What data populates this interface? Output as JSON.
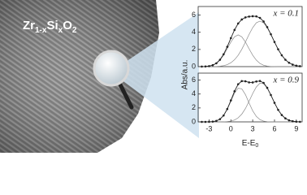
{
  "image_label_parts": [
    "Zr",
    "1-x",
    "Si",
    "x",
    "O",
    "2"
  ],
  "chart_data": [
    {
      "type": "line",
      "ylabel": "Abs/a.u.",
      "annotation": "x = 0.1",
      "x": [
        -4,
        -3.5,
        -3,
        -2.5,
        -2,
        -1.5,
        -1,
        -0.5,
        0,
        0.5,
        1,
        1.5,
        2,
        2.5,
        3,
        3.5,
        4,
        4.5,
        5,
        5.5,
        6,
        6.5,
        7,
        7.5,
        8,
        8.5,
        9,
        9.5
      ],
      "series": [
        {
          "color": "#222222",
          "markers": true,
          "values": [
            0.01,
            0.02,
            0.06,
            0.17,
            0.39,
            0.8,
            1.44,
            2.31,
            3.32,
            4.27,
            5.02,
            5.49,
            5.73,
            5.83,
            5.87,
            5.85,
            5.67,
            5.26,
            4.6,
            3.77,
            2.87,
            2.02,
            1.32,
            0.8,
            0.45,
            0.23,
            0.11,
            0.05
          ]
        },
        {
          "color": "#8a8a8a",
          "markers": false,
          "values": [
            0.01,
            0.02,
            0.06,
            0.16,
            0.37,
            0.75,
            1.33,
            2.08,
            2.87,
            3.47,
            3.7,
            3.47,
            2.87,
            2.08,
            1.33,
            0.75,
            0.37,
            0.16,
            0.06,
            0.02,
            0.01,
            0,
            0,
            0,
            0,
            0,
            0,
            0
          ]
        },
        {
          "color": "#8a8a8a",
          "markers": false,
          "values": [
            0,
            0,
            0,
            0.01,
            0.02,
            0.05,
            0.11,
            0.23,
            0.45,
            0.8,
            1.32,
            2.02,
            2.86,
            3.75,
            4.54,
            5.1,
            5.3,
            5.1,
            4.54,
            3.75,
            2.86,
            2.02,
            1.32,
            0.8,
            0.45,
            0.23,
            0.11,
            0.05
          ]
        }
      ],
      "xlim": [
        -4.5,
        9.8
      ],
      "ylim": [
        0,
        7
      ],
      "yticks": [
        0,
        2,
        4,
        6
      ]
    },
    {
      "type": "line",
      "annotation": "x = 0.9",
      "xlabel_parts": [
        "E-E",
        "0"
      ],
      "x": [
        -4,
        -3.5,
        -3,
        -2.5,
        -2,
        -1.5,
        -1,
        -0.5,
        0,
        0.5,
        1,
        1.5,
        2,
        2.5,
        3,
        3.5,
        4,
        4.5,
        5,
        5.5,
        6,
        6.5,
        7,
        7.5,
        8,
        8.5,
        9,
        9.5
      ],
      "series": [
        {
          "color": "#222222",
          "markers": true,
          "values": [
            0,
            0,
            0.01,
            0.04,
            0.14,
            0.39,
            0.92,
            1.84,
            3.08,
            4.4,
            5.41,
            5.86,
            5.83,
            5.67,
            5.66,
            5.8,
            5.87,
            5.6,
            4.89,
            3.86,
            2.73,
            1.73,
            0.98,
            0.5,
            0.23,
            0.09,
            0.03,
            0.01
          ]
        },
        {
          "color": "#8a8a8a",
          "markers": false,
          "values": [
            0,
            0,
            0.01,
            0.04,
            0.14,
            0.39,
            0.91,
            1.8,
            2.97,
            4.13,
            4.83,
            4.75,
            3.92,
            2.72,
            1.59,
            0.78,
            0.32,
            0.11,
            0.03,
            0.01,
            0,
            0,
            0,
            0,
            0,
            0,
            0,
            0
          ]
        },
        {
          "color": "#8a8a8a",
          "markers": false,
          "values": [
            0,
            0,
            0,
            0,
            0,
            0,
            0.01,
            0.04,
            0.11,
            0.27,
            0.58,
            1.11,
            1.91,
            2.95,
            4.07,
            5.02,
            5.55,
            5.49,
            4.86,
            3.85,
            2.73,
            1.73,
            0.98,
            0.5,
            0.23,
            0.09,
            0.03,
            0.01
          ]
        }
      ],
      "xlim": [
        -4.5,
        9.8
      ],
      "ylim": [
        0,
        7
      ],
      "yticks": [
        0,
        2,
        4,
        6
      ],
      "xticks": [
        -3,
        0,
        3,
        6,
        9
      ]
    }
  ]
}
